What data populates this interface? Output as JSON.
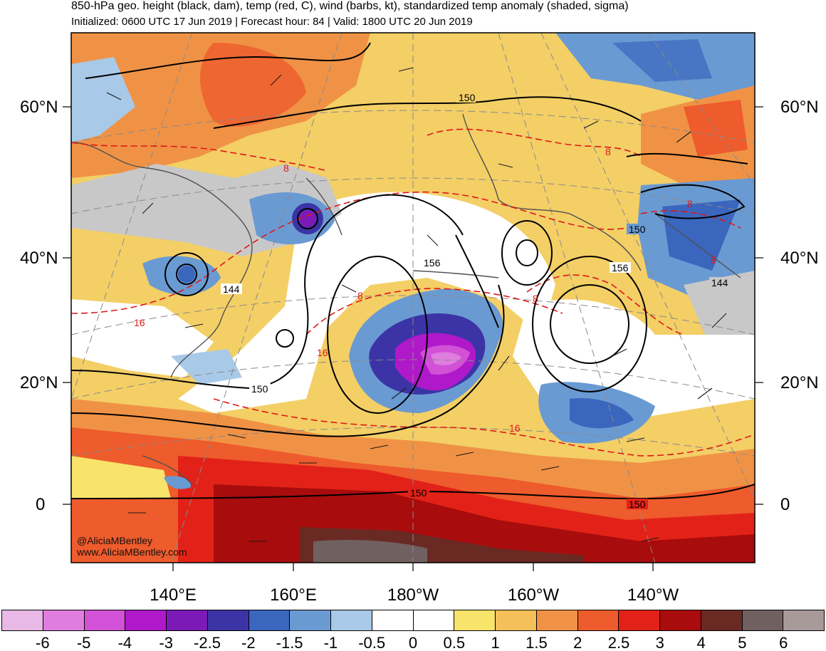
{
  "title": "850-hPa geo. height (black, dam), temp (red, C), wind (barbs, kt), standardized temp anomaly (shaded, sigma)",
  "subtitle": "Initialized: 0600 UTC 17 Jun 2019 | Forecast hour: 84 | Valid: 1800 UTC 20 Jun 2019",
  "lat_labels": [
    "60°N",
    "40°N",
    "20°N",
    "0"
  ],
  "lon_labels": [
    "140°E",
    "160°E",
    "180°W",
    "160°W",
    "140°W"
  ],
  "credit": {
    "handle": "@AliciaMBentley",
    "site": "www.AliciaMBentley.com"
  },
  "contour_labels": {
    "height": [
      "150",
      "156",
      "144",
      "150",
      "150",
      "156",
      "150",
      "150",
      "144"
    ],
    "temp": [
      "8",
      "16",
      "8",
      "16",
      "8",
      "8",
      "8",
      "16",
      "8"
    ]
  },
  "colorbar": {
    "colors": [
      "#e8b8e6",
      "#e07ee0",
      "#d251d6",
      "#b019c9",
      "#7c1ab8",
      "#3c34a6",
      "#3a66bd",
      "#6a9ad2",
      "#a9c9e8",
      "#ffffff",
      "#ffffff",
      "#f8e46a",
      "#f3c05a",
      "#f09245",
      "#ee5b2c",
      "#e22218",
      "#a80c0c",
      "#6a2a24",
      "#706060",
      "#a89a98"
    ],
    "ticks": [
      "-6",
      "-5",
      "-4",
      "-3",
      "-2.5",
      "-2",
      "-1.5",
      "-1",
      "-0.5",
      "0",
      "0.5",
      "1",
      "1.5",
      "2",
      "2.5",
      "3",
      "4",
      "5",
      "6"
    ]
  }
}
